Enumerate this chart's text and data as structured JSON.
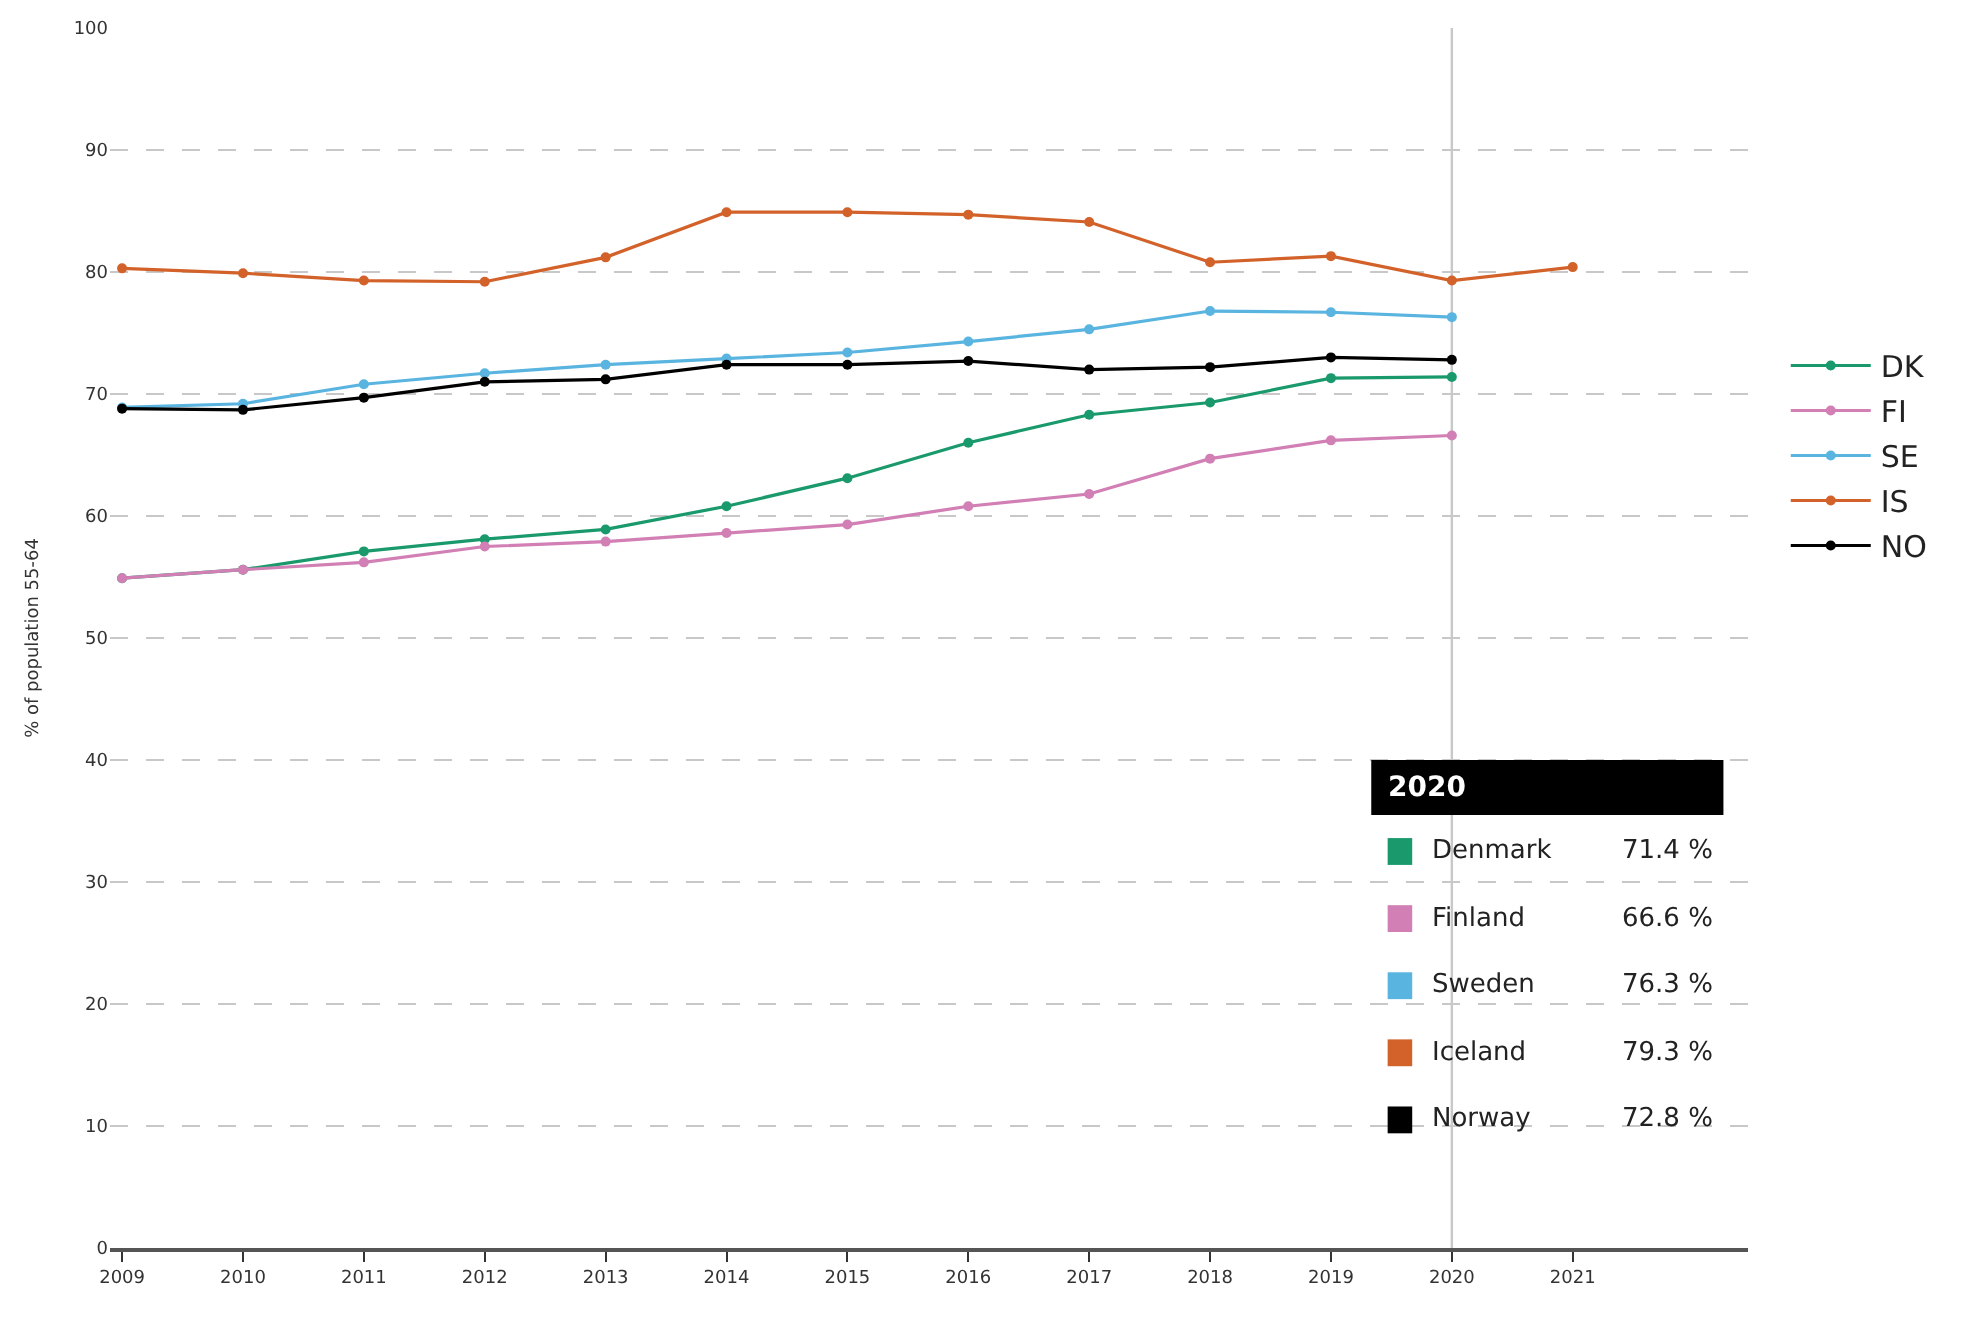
{
  "chart_data": {
    "type": "line",
    "ylabel": "% of population 55-64",
    "x": [
      2009,
      2010,
      2011,
      2012,
      2013,
      2014,
      2015,
      2016,
      2017,
      2018,
      2019,
      2020,
      2021
    ],
    "series": [
      {
        "name": "DK",
        "color": "#1a9a6c",
        "values": [
          54.9,
          55.6,
          57.1,
          58.1,
          58.9,
          60.8,
          63.1,
          66.0,
          68.3,
          69.3,
          71.3,
          71.4,
          null
        ]
      },
      {
        "name": "FI",
        "color": "#d17fb4",
        "values": [
          54.9,
          55.6,
          56.2,
          57.5,
          57.9,
          58.6,
          59.3,
          60.8,
          61.8,
          64.7,
          66.2,
          66.6,
          null
        ]
      },
      {
        "name": "SE",
        "color": "#5ab4e0",
        "values": [
          68.9,
          69.2,
          70.8,
          71.7,
          72.4,
          72.9,
          73.4,
          74.3,
          75.3,
          76.8,
          76.7,
          76.3,
          null
        ]
      },
      {
        "name": "IS",
        "color": "#d2622a",
        "values": [
          80.3,
          79.9,
          79.3,
          79.2,
          81.2,
          84.9,
          84.9,
          84.7,
          84.1,
          80.8,
          81.3,
          79.3,
          80.4
        ]
      },
      {
        "name": "NO",
        "color": "#000000",
        "values": [
          68.8,
          68.7,
          69.7,
          71.0,
          71.2,
          72.4,
          72.4,
          72.7,
          72.0,
          72.2,
          73.0,
          72.8,
          null
        ]
      }
    ],
    "xlim": [
      2008.9,
      2022.45
    ],
    "xticks": [
      2009,
      2010,
      2011,
      2012,
      2013,
      2014,
      2015,
      2016,
      2017,
      2018,
      2019,
      2020,
      2021
    ],
    "ylim": [
      0,
      100
    ],
    "yticks": [
      0,
      10,
      20,
      30,
      40,
      50,
      60,
      70,
      80,
      90,
      100
    ],
    "grid": "y",
    "marker": "circle",
    "line_style": "solid",
    "legend": "right",
    "ref_lines": [
      {
        "axis": "x",
        "value": 2020,
        "color": "#c8c8c8"
      }
    ],
    "annotations": [
      "2020",
      "Denmark",
      "71.4 %",
      "Finland",
      "66.6 %",
      "Sweden",
      "76.3 %",
      "Iceland",
      "79.3 %",
      "Norway",
      "72.8 %"
    ]
  }
}
